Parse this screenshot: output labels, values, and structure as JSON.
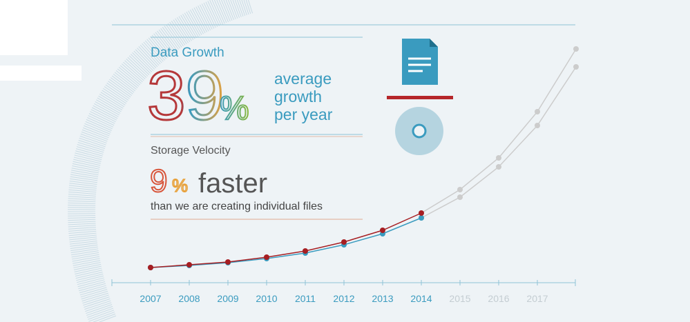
{
  "header": {
    "title": "Data Growth",
    "growth_value": "39",
    "growth_unit": "%",
    "growth_caption": [
      "average",
      "growth",
      "per year"
    ]
  },
  "velocity": {
    "title": "Storage Velocity",
    "value": "9",
    "unit": "%",
    "word": "faster",
    "caption": "than we are creating individual files"
  },
  "chart_data": {
    "type": "line",
    "categories": [
      "2007",
      "2008",
      "2009",
      "2010",
      "2011",
      "2012",
      "2013",
      "2014",
      "2015",
      "2016",
      "2017",
      null
    ],
    "series": [
      {
        "color": "#cccccc",
        "values": [
          null,
          null,
          null,
          null,
          null,
          null,
          null,
          101,
          135,
          181,
          248,
          339
        ]
      },
      {
        "color": "#cccccc",
        "values": [
          null,
          null,
          null,
          null,
          null,
          null,
          null,
          94,
          124,
          168,
          228,
          313
        ]
      },
      {
        "color": "#3a9bbf",
        "values": [
          22,
          25,
          29,
          35,
          43,
          55,
          71,
          94,
          null,
          null,
          null,
          null
        ]
      },
      {
        "color": "#a61e22",
        "values": [
          22,
          26,
          30,
          37,
          46,
          59,
          76,
          101,
          null,
          null,
          null,
          null
        ]
      }
    ],
    "ylim": [
      0,
      339
    ],
    "label_color": "#3a9bbf",
    "muted_label_color": "#c4cdd2"
  }
}
